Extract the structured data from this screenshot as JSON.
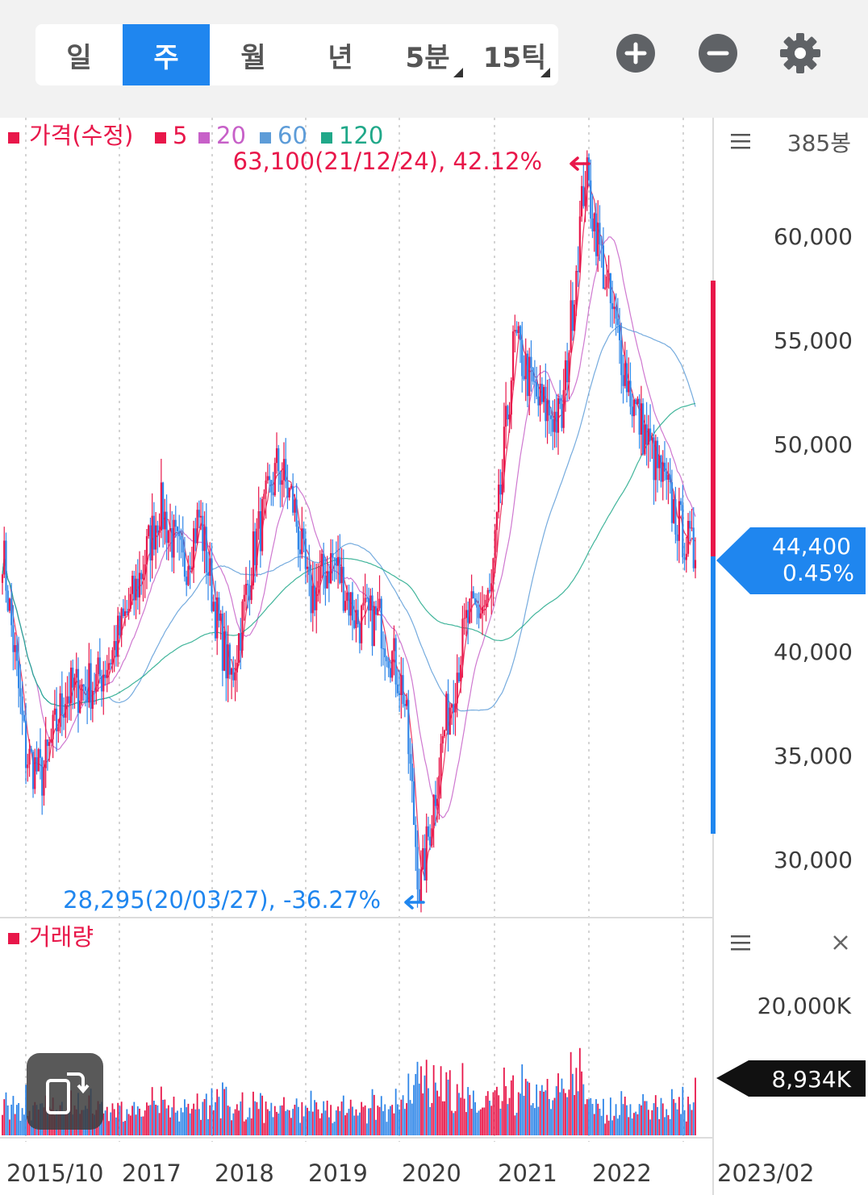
{
  "period_tabs": [
    {
      "label": "일",
      "active": false
    },
    {
      "label": "주",
      "active": true
    },
    {
      "label": "월",
      "active": false
    },
    {
      "label": "년",
      "active": false
    },
    {
      "label": "5분",
      "active": false,
      "dropdown": true
    },
    {
      "label": "15틱",
      "active": false,
      "dropdown": true
    }
  ],
  "toolbar_icons": [
    "zoom-in-icon",
    "zoom-out-icon",
    "settings-gear-icon"
  ],
  "legend": {
    "price": "가격(수정)",
    "ma5": "5",
    "ma20": "20",
    "ma60": "60",
    "ma120": "120"
  },
  "candle_count": "385봉",
  "high_marker": "63,100(21/12/24), 42.12%",
  "low_marker": "28,295(20/03/27), -36.27%",
  "current_price": {
    "price": "44,400",
    "change": "0.45%"
  },
  "price_axis": [
    "60,000",
    "55,000",
    "50,000",
    "40,000",
    "35,000",
    "30,000"
  ],
  "volume": {
    "label": "거래량",
    "axis": "20,000K",
    "current": "8,934K"
  },
  "x_axis": [
    "2015/10",
    "2017",
    "2018",
    "2019",
    "2020",
    "2021",
    "2022",
    "2023/02"
  ],
  "colors": {
    "up": "#e8174a",
    "down": "#2f86e8",
    "ma5": "#e8174a",
    "ma20": "#c760c8",
    "ma60": "#5d9cd8",
    "ma120": "#20a889",
    "accent": "#1f86ef"
  },
  "chart_data": {
    "type": "candlestick",
    "interval": "weekly",
    "bars": 385,
    "high": {
      "value": 63100,
      "date": "21/12/24",
      "change_pct": 42.12
    },
    "low": {
      "value": 28295,
      "date": "20/03/27",
      "change_pct": -36.27
    },
    "last": {
      "value": 44400,
      "change_pct": 0.45
    },
    "ylim": [
      27000,
      66500
    ],
    "price_path": [
      {
        "x": "2015/10",
        "y": 45000
      },
      {
        "x": "2016/01",
        "y": 35000
      },
      {
        "x": "2016/03",
        "y": 34000
      },
      {
        "x": "2016/06",
        "y": 38000
      },
      {
        "x": "2016/10",
        "y": 38500
      },
      {
        "x": "2016/12",
        "y": 40000
      },
      {
        "x": "2017/03",
        "y": 43000
      },
      {
        "x": "2017/06",
        "y": 47000
      },
      {
        "x": "2017/09",
        "y": 44000
      },
      {
        "x": "2017/11",
        "y": 46500
      },
      {
        "x": "2018/01",
        "y": 42000
      },
      {
        "x": "2018/03",
        "y": 38500
      },
      {
        "x": "2018/06",
        "y": 45000
      },
      {
        "x": "2018/09",
        "y": 49000
      },
      {
        "x": "2018/11",
        "y": 47000
      },
      {
        "x": "2019/01",
        "y": 42500
      },
      {
        "x": "2019/04",
        "y": 44500
      },
      {
        "x": "2019/07",
        "y": 41500
      },
      {
        "x": "2019/10",
        "y": 41500
      },
      {
        "x": "2020/01",
        "y": 38000
      },
      {
        "x": "2020/03",
        "y": 28295
      },
      {
        "x": "2020/06",
        "y": 36000
      },
      {
        "x": "2020/09",
        "y": 41500
      },
      {
        "x": "2020/12",
        "y": 42500
      },
      {
        "x": "2021/03",
        "y": 55000
      },
      {
        "x": "2021/06",
        "y": 52000
      },
      {
        "x": "2021/09",
        "y": 51000
      },
      {
        "x": "2021/12",
        "y": 63100
      },
      {
        "x": "2022/03",
        "y": 57000
      },
      {
        "x": "2022/06",
        "y": 52000
      },
      {
        "x": "2022/09",
        "y": 49000
      },
      {
        "x": "2022/12",
        "y": 46000
      },
      {
        "x": "2023/02",
        "y": 44400
      }
    ],
    "volume_axis_tick": 20000,
    "volume_unit": "K",
    "volume_last": 8934,
    "volume_max": 28000
  }
}
